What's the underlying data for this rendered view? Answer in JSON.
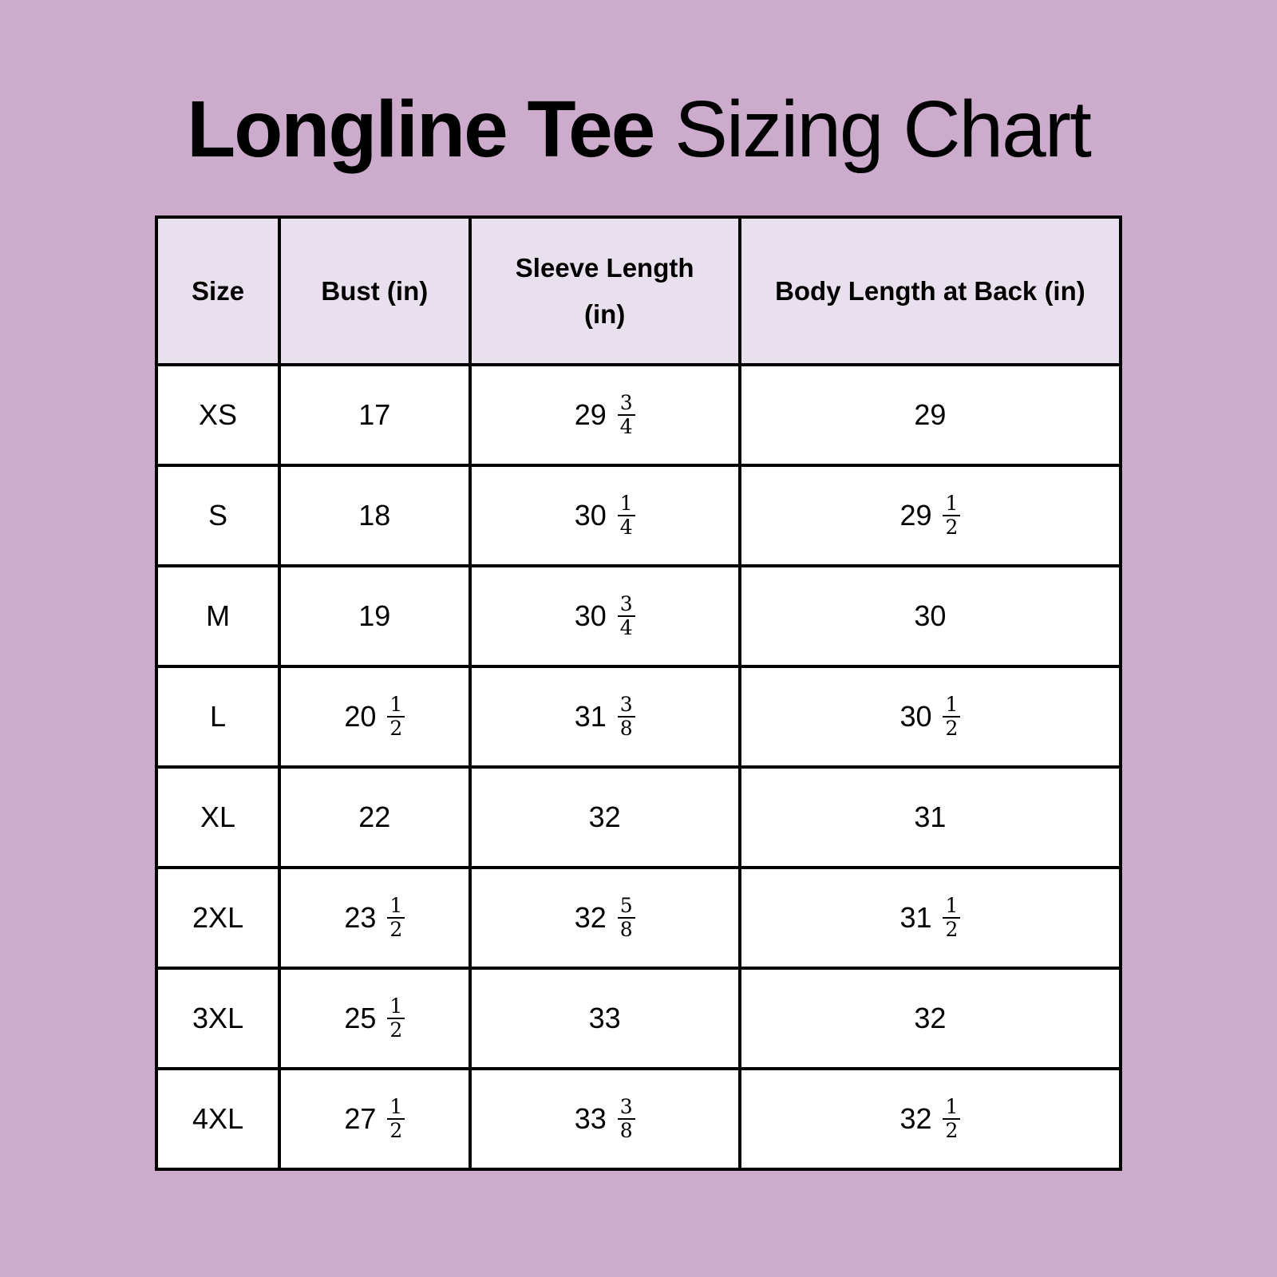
{
  "title": {
    "bold": "Longline Tee",
    "regular": "Sizing Chart"
  },
  "colors": {
    "background": "#cdabcd",
    "header": "#e8e0ec",
    "border": "#000000"
  },
  "headers": [
    "Size",
    "Bust (in)",
    "Sleeve Length (in)",
    "Body Length at Back (in)"
  ],
  "rows": [
    {
      "size": "XS",
      "bust": {
        "w": "17"
      },
      "sleeve": {
        "w": "29",
        "n": "3",
        "d": "4"
      },
      "body": {
        "w": "29"
      }
    },
    {
      "size": "S",
      "bust": {
        "w": "18"
      },
      "sleeve": {
        "w": "30",
        "n": "1",
        "d": "4"
      },
      "body": {
        "w": "29",
        "n": "1",
        "d": "2"
      }
    },
    {
      "size": "M",
      "bust": {
        "w": "19"
      },
      "sleeve": {
        "w": "30",
        "n": "3",
        "d": "4"
      },
      "body": {
        "w": "30"
      }
    },
    {
      "size": "L",
      "bust": {
        "w": "20",
        "n": "1",
        "d": "2"
      },
      "sleeve": {
        "w": "31",
        "n": "3",
        "d": "8"
      },
      "body": {
        "w": "30",
        "n": "1",
        "d": "2"
      }
    },
    {
      "size": "XL",
      "bust": {
        "w": "22"
      },
      "sleeve": {
        "w": "32"
      },
      "body": {
        "w": "31"
      }
    },
    {
      "size": "2XL",
      "bust": {
        "w": "23",
        "n": "1",
        "d": "2"
      },
      "sleeve": {
        "w": "32",
        "n": "5",
        "d": "8"
      },
      "body": {
        "w": "31",
        "n": "1",
        "d": "2"
      }
    },
    {
      "size": "3XL",
      "bust": {
        "w": "25",
        "n": "1",
        "d": "2"
      },
      "sleeve": {
        "w": "33"
      },
      "body": {
        "w": "32"
      }
    },
    {
      "size": "4XL",
      "bust": {
        "w": "27",
        "n": "1",
        "d": "2"
      },
      "sleeve": {
        "w": "33",
        "n": "3",
        "d": "8"
      },
      "body": {
        "w": "32",
        "n": "1",
        "d": "2"
      }
    }
  ]
}
